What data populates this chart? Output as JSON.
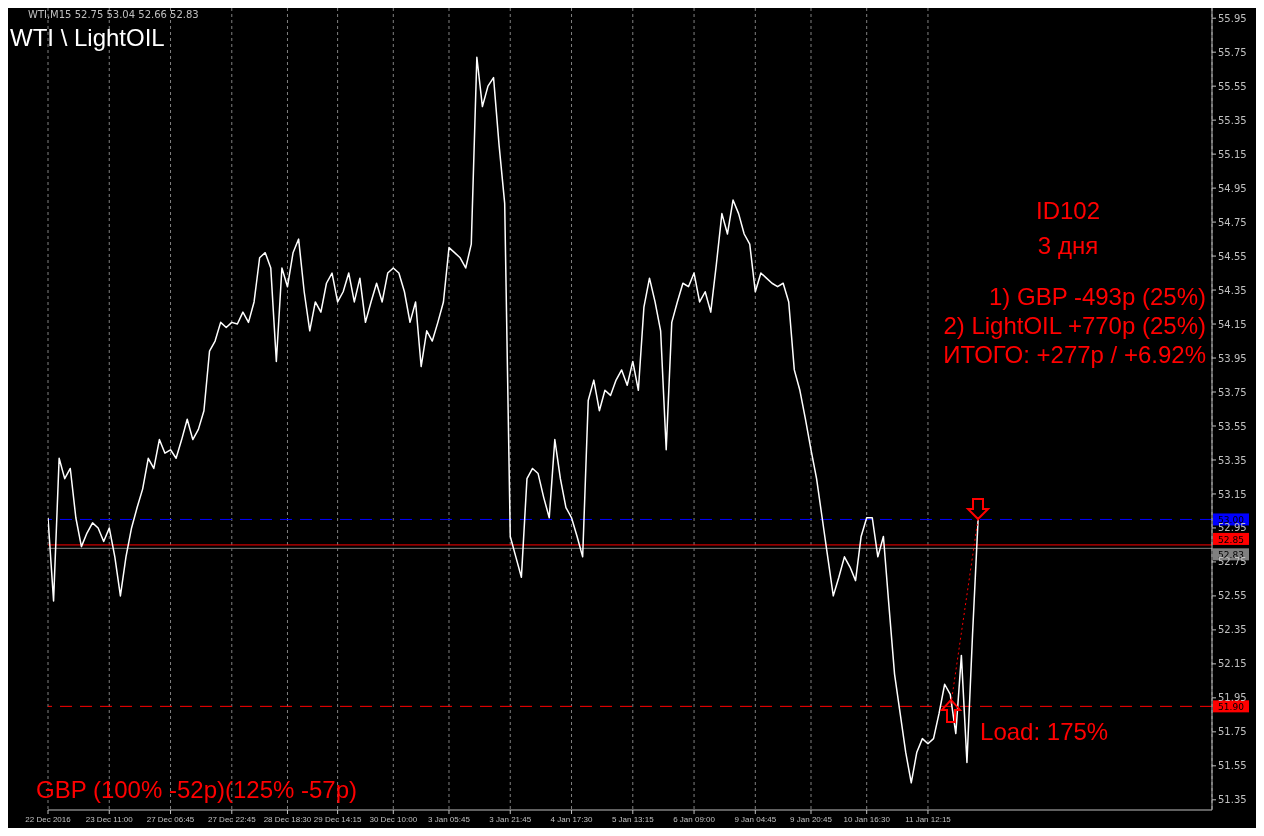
{
  "chart_data": {
    "type": "line",
    "title": "WTI \\ LightOIL",
    "subtitle": "WTI,M15  52.75 53.04 52.66 52.83",
    "annotations": [
      "ID102",
      "3 дня",
      "1) GBP -493p (25%)",
      "2) LightOIL +770p (25%)",
      "ИТОГО: +277p / +6.92%",
      "Load: 175%",
      "GBP (100% -52p)(125% -57p)"
    ],
    "categories": [
      "22 Dec 2016",
      null,
      null,
      null,
      null,
      null,
      null,
      null,
      null,
      null,
      null,
      "23 Dec 11:00",
      null,
      null,
      null,
      null,
      null,
      null,
      null,
      null,
      null,
      null,
      "27 Dec 06:45",
      null,
      null,
      null,
      null,
      null,
      null,
      null,
      null,
      null,
      null,
      "27 Dec 22:45",
      null,
      null,
      null,
      null,
      null,
      null,
      null,
      null,
      null,
      "28 Dec 18:30",
      null,
      null,
      null,
      null,
      null,
      null,
      null,
      null,
      "29 Dec 14:15",
      null,
      null,
      null,
      null,
      null,
      null,
      null,
      null,
      null,
      "30 Dec 10:00",
      null,
      null,
      null,
      null,
      null,
      null,
      null,
      null,
      null,
      "3 Jan 05:45",
      null,
      null,
      null,
      null,
      null,
      null,
      null,
      null,
      null,
      null,
      "3 Jan 21:45",
      null,
      null,
      null,
      null,
      null,
      null,
      null,
      null,
      null,
      null,
      "4 Jan 17:30",
      null,
      null,
      null,
      null,
      null,
      null,
      null,
      null,
      null,
      null,
      "5 Jan 13:15",
      null,
      null,
      null,
      null,
      null,
      null,
      null,
      null,
      null,
      null,
      "6 Jan 09:00",
      null,
      null,
      null,
      null,
      null,
      null,
      null,
      null,
      null,
      null,
      "9 Jan 04:45",
      null,
      null,
      null,
      null,
      null,
      null,
      null,
      null,
      null,
      "9 Jan 20:45",
      null,
      null,
      null,
      null,
      null,
      null,
      null,
      null,
      null,
      "10 Jan 16:30",
      null,
      null,
      null,
      null,
      null,
      null,
      null,
      null,
      null,
      null,
      "11 Jan 12:15",
      null,
      null,
      null,
      null,
      null,
      null,
      null,
      null,
      null,
      null,
      null,
      null,
      null,
      null,
      null,
      null,
      null,
      null,
      null,
      null,
      null,
      null,
      null,
      null,
      null,
      null,
      null,
      null,
      null,
      null,
      null,
      null,
      null,
      null,
      null,
      null,
      null,
      null,
      null,
      null,
      null,
      null,
      null,
      null,
      null,
      null,
      null,
      null,
      null,
      null,
      null
    ],
    "series": [
      {
        "color": "#ffffff",
        "values": [
          53.01,
          52.52,
          53.36,
          53.24,
          53.3,
          53.01,
          52.84,
          52.92,
          52.98,
          52.95,
          52.87,
          52.95,
          52.78,
          52.55,
          52.78,
          52.95,
          53.07,
          53.18,
          53.36,
          53.3,
          53.47,
          53.39,
          53.41,
          53.36,
          53.47,
          53.59,
          53.47,
          53.53,
          53.64,
          53.99,
          54.05,
          54.16,
          54.13,
          54.16,
          54.15,
          54.22,
          54.16,
          54.28,
          54.54,
          54.57,
          54.48,
          53.93,
          54.48,
          54.37,
          54.57,
          54.65,
          54.34,
          54.11,
          54.28,
          54.22,
          54.39,
          54.45,
          54.28,
          54.34,
          54.45,
          54.28,
          54.42,
          54.16,
          54.28,
          54.39,
          54.28,
          54.45,
          54.48,
          54.45,
          54.34,
          54.16,
          54.28,
          53.9,
          54.11,
          54.05,
          54.16,
          54.28,
          54.6,
          54.57,
          54.54,
          54.48,
          54.62,
          55.72,
          55.43,
          55.55,
          55.6,
          55.2,
          54.86,
          52.9,
          52.78,
          52.66,
          53.24,
          53.3,
          53.27,
          53.13,
          53.01,
          53.47,
          53.24,
          53.07,
          53.01,
          52.9,
          52.78,
          53.7,
          53.82,
          53.64,
          53.76,
          53.73,
          53.82,
          53.88,
          53.79,
          53.93,
          53.76,
          54.25,
          54.42,
          54.28,
          54.11,
          53.41,
          54.16,
          54.28,
          54.39,
          54.37,
          54.45,
          54.28,
          54.34,
          54.22,
          54.5,
          54.8,
          54.68,
          54.88,
          54.8,
          54.68,
          54.62,
          54.34,
          54.45,
          54.42,
          54.39,
          54.37,
          54.39,
          54.28,
          53.88,
          53.76,
          53.59,
          53.41,
          53.24,
          53.01,
          52.78,
          52.55,
          52.66,
          52.78,
          52.72,
          52.64,
          52.9,
          53.01,
          53.01,
          52.78,
          52.9,
          52.49,
          52.09,
          51.86,
          51.63,
          51.45,
          51.63,
          51.71,
          51.68,
          51.71,
          51.86,
          52.03,
          51.97,
          51.74,
          52.2,
          51.57,
          52.32,
          53.0,
          null,
          null,
          null,
          null,
          null,
          null,
          null,
          null,
          null,
          null,
          null,
          null,
          null,
          null,
          null,
          null,
          null,
          null,
          null,
          null,
          null,
          null,
          null,
          null,
          null,
          null,
          null,
          null,
          null,
          null,
          null,
          null,
          null,
          null,
          null,
          null,
          null,
          null,
          null,
          null,
          null,
          null
        ]
      }
    ],
    "ylim": [
      51.29,
      56.01
    ],
    "yticks": [
      {
        "value": 51.35,
        "label": "51.35"
      },
      {
        "value": 51.55,
        "label": "51.55"
      },
      {
        "value": 51.75,
        "label": "51.75"
      },
      {
        "value": 51.95,
        "label": "51.95"
      },
      {
        "value": 52.15,
        "label": "52.15"
      },
      {
        "value": 52.35,
        "label": "52.35"
      },
      {
        "value": 52.55,
        "label": "52.55"
      },
      {
        "value": 52.75,
        "label": "52.75"
      },
      {
        "value": 52.95,
        "label": "52.95"
      },
      {
        "value": 53.15,
        "label": "53.15"
      },
      {
        "value": 53.35,
        "label": "53.35"
      },
      {
        "value": 53.55,
        "label": "53.55"
      },
      {
        "value": 53.75,
        "label": "53.75"
      },
      {
        "value": 53.95,
        "label": "53.95"
      },
      {
        "value": 54.15,
        "label": "54.15"
      },
      {
        "value": 54.35,
        "label": "54.35"
      },
      {
        "value": 54.55,
        "label": "54.55"
      },
      {
        "value": 54.75,
        "label": "54.75"
      },
      {
        "value": 54.95,
        "label": "54.95"
      },
      {
        "value": 55.15,
        "label": "55.15"
      },
      {
        "value": 55.35,
        "label": "55.35"
      },
      {
        "value": 55.55,
        "label": "55.55"
      },
      {
        "value": 55.75,
        "label": "55.75"
      },
      {
        "value": 55.95,
        "label": "55.95"
      }
    ],
    "ref_lines": [
      {
        "axis": "y",
        "value": 53.0,
        "label": "53.00",
        "color": "#0000ff",
        "line_style": "dashed"
      },
      {
        "axis": "y",
        "value": 52.85,
        "label": "52.85",
        "color": "#ff0000",
        "line_style": "solid"
      },
      {
        "axis": "y",
        "value": 52.83,
        "label": "52.83",
        "color": "#808080",
        "line_style": "solid"
      },
      {
        "axis": "y",
        "value": 51.9,
        "label": "51.90",
        "color": "#ff0000",
        "line_style": "dashed"
      }
    ],
    "grid": "x",
    "marker": "none",
    "line_style": "solid",
    "legend": false
  }
}
